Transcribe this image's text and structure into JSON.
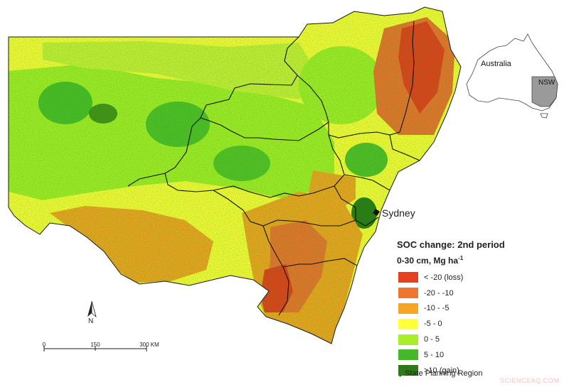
{
  "map": {
    "city_label": "Sydney",
    "inset": {
      "country_label": "Australia",
      "state_label": "NSW"
    }
  },
  "legend": {
    "title": "SOC change: 2nd period",
    "subtitle_text": "0-30 cm, Mg ha",
    "subtitle_exponent": "-1",
    "items": [
      {
        "label": "< -20 (loss)",
        "color": "#e8401f"
      },
      {
        "label": "-20 - -10",
        "color": "#ef7530"
      },
      {
        "label": "-10 - -5",
        "color": "#f5a623"
      },
      {
        "label": "-5 - 0",
        "color": "#ffff3a"
      },
      {
        "label": "0 - 5",
        "color": "#a8ef2a"
      },
      {
        "label": "5 - 10",
        "color": "#45b82a"
      },
      {
        "label": ">10 (gain)",
        "color": "#2f7a18"
      }
    ],
    "region_label": "State Planning Region"
  },
  "scale_bar": {
    "labels": [
      "0",
      "150",
      "300 KM"
    ]
  },
  "north_arrow": {
    "label": "N"
  },
  "watermark": "SCIENCEAQ.COM"
}
